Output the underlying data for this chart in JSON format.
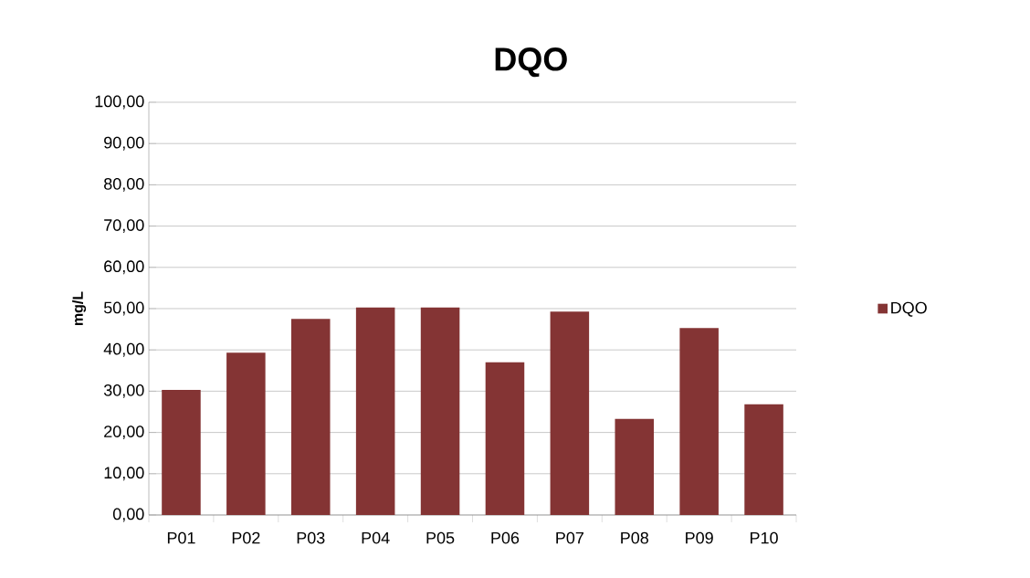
{
  "chart_data": {
    "type": "bar",
    "title": "DQO",
    "ylabel": "mg/L",
    "categories": [
      "P01",
      "P02",
      "P03",
      "P04",
      "P05",
      "P06",
      "P07",
      "P08",
      "P09",
      "P10"
    ],
    "series": [
      {
        "name": "DQO",
        "color": "#843434",
        "values": [
          30.3,
          39.3,
          47.5,
          50.3,
          50.3,
          37.0,
          49.3,
          23.3,
          45.3,
          26.8
        ]
      }
    ],
    "ylim": [
      0,
      100
    ],
    "yticks": [
      {
        "value": 0,
        "label": "0,00"
      },
      {
        "value": 10,
        "label": "10,00"
      },
      {
        "value": 20,
        "label": "20,00"
      },
      {
        "value": 30,
        "label": "30,00"
      },
      {
        "value": 40,
        "label": "40,00"
      },
      {
        "value": 50,
        "label": "50,00"
      },
      {
        "value": 60,
        "label": "60,00"
      },
      {
        "value": 70,
        "label": "70,00"
      },
      {
        "value": 80,
        "label": "80,00"
      },
      {
        "value": 90,
        "label": "90,00"
      },
      {
        "value": 100,
        "label": "100,00"
      }
    ],
    "grid": "y",
    "legend": "right"
  }
}
